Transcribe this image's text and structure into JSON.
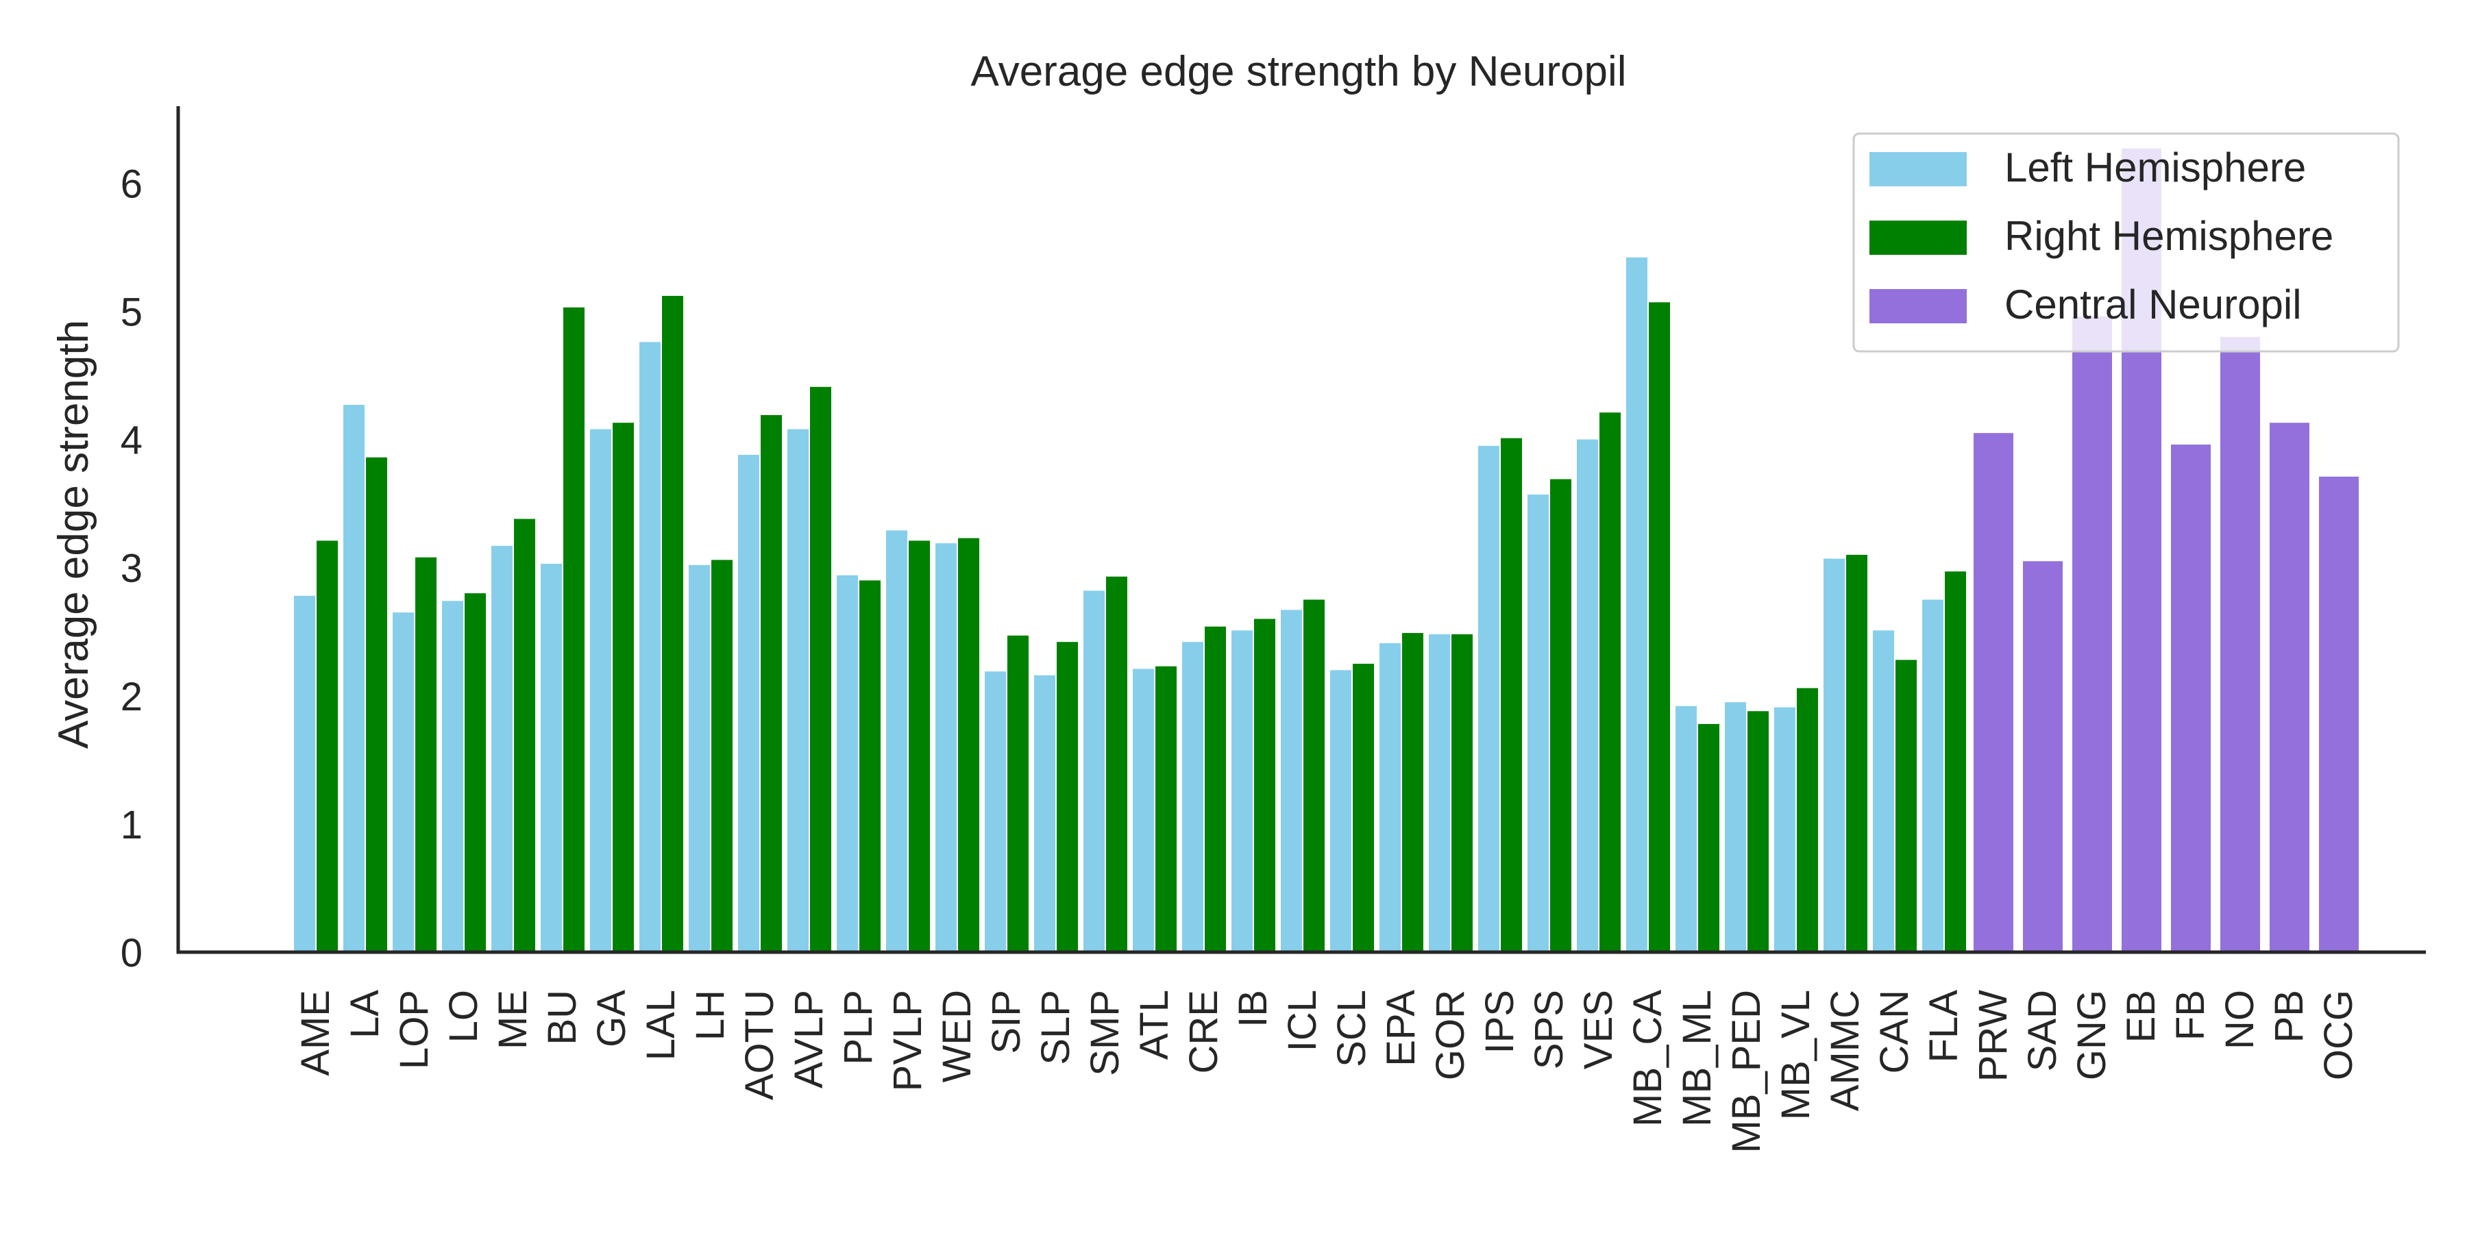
{
  "chart_data": {
    "type": "bar",
    "title": "Average edge strength by Neuropil",
    "xlabel": "",
    "ylabel": "Average edge strength",
    "ylim": [
      0,
      6.6
    ],
    "yticks": [
      0,
      1,
      2,
      3,
      4,
      5,
      6
    ],
    "grid": false,
    "legend_position": "top-right",
    "categories": [
      "AME",
      "LA",
      "LOP",
      "LO",
      "ME",
      "BU",
      "GA",
      "LAL",
      "LH",
      "AOTU",
      "AVLP",
      "PLP",
      "PVLP",
      "WED",
      "SIP",
      "SLP",
      "SMP",
      "ATL",
      "CRE",
      "IB",
      "ICL",
      "SCL",
      "EPA",
      "GOR",
      "IPS",
      "SPS",
      "VES",
      "MB_CA",
      "MB_ML",
      "MB_PED",
      "MB_VL",
      "AMMC",
      "CAN",
      "FLA",
      "PRW",
      "SAD",
      "GNG",
      "EB",
      "FB",
      "NO",
      "PB",
      "OCG"
    ],
    "series": [
      {
        "name": "Left Hemisphere",
        "color": "#87ceeb",
        "values": [
          2.78,
          4.27,
          2.65,
          2.74,
          3.17,
          3.03,
          4.08,
          4.76,
          3.02,
          3.88,
          4.08,
          2.94,
          3.29,
          3.19,
          2.19,
          2.16,
          2.82,
          2.21,
          2.42,
          2.51,
          2.67,
          2.2,
          2.41,
          2.48,
          3.95,
          3.57,
          4.0,
          5.42,
          1.92,
          1.95,
          1.91,
          3.07,
          2.51,
          2.75,
          null,
          null,
          null,
          null,
          null,
          null,
          null,
          null
        ]
      },
      {
        "name": "Right Hemisphere",
        "color": "#008000",
        "values": [
          3.21,
          3.86,
          3.08,
          2.8,
          3.38,
          5.03,
          4.13,
          5.12,
          3.06,
          4.19,
          4.41,
          2.9,
          3.21,
          3.23,
          2.47,
          2.42,
          2.93,
          2.23,
          2.54,
          2.6,
          2.75,
          2.25,
          2.49,
          2.48,
          4.01,
          3.69,
          4.21,
          5.07,
          1.78,
          1.88,
          2.06,
          3.1,
          2.28,
          2.97,
          null,
          null,
          null,
          null,
          null,
          null,
          null,
          null
        ]
      },
      {
        "name": "Central Neuropil",
        "color": "#9370db",
        "values": [
          null,
          null,
          null,
          null,
          null,
          null,
          null,
          null,
          null,
          null,
          null,
          null,
          null,
          null,
          null,
          null,
          null,
          null,
          null,
          null,
          null,
          null,
          null,
          null,
          null,
          null,
          null,
          null,
          null,
          null,
          null,
          null,
          null,
          null,
          4.05,
          3.05,
          4.96,
          6.27,
          3.96,
          4.8,
          4.13,
          3.71
        ]
      }
    ]
  }
}
